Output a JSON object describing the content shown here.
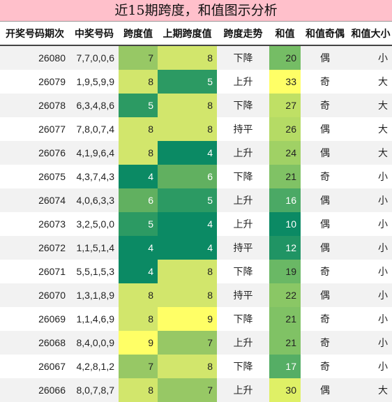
{
  "title": "近15期跨度，和值图示分析",
  "headers": {
    "period": "开奖号码期次",
    "numbers": "中奖号码",
    "span": "跨度值",
    "prev_span": "上期跨度值",
    "trend": "跨度走势",
    "sum": "和值",
    "parity": "和值奇偶",
    "size": "和值大小"
  },
  "colors": {
    "title_bg": "#ffc0cb",
    "span_4": "#0b8a64",
    "span_5": "#2c9a63",
    "span_6": "#61b060",
    "span_7": "#97c865",
    "span_8": "#d2e66c",
    "span_9": "#ffff66",
    "sum_scale_low": "#0b8a64",
    "sum_scale_high": "#ffff66"
  },
  "rows": [
    {
      "period": "26080",
      "numbers": "7,7,0,0,6",
      "span": "7",
      "prev_span": "8",
      "trend": "下降",
      "sum": "20",
      "parity": "偶",
      "size": "小"
    },
    {
      "period": "26079",
      "numbers": "1,9,5,9,9",
      "span": "8",
      "prev_span": "5",
      "trend": "上升",
      "sum": "33",
      "parity": "奇",
      "size": "大"
    },
    {
      "period": "26078",
      "numbers": "6,3,4,8,6",
      "span": "5",
      "prev_span": "8",
      "trend": "下降",
      "sum": "27",
      "parity": "奇",
      "size": "大"
    },
    {
      "period": "26077",
      "numbers": "7,8,0,7,4",
      "span": "8",
      "prev_span": "8",
      "trend": "持平",
      "sum": "26",
      "parity": "偶",
      "size": "大"
    },
    {
      "period": "26076",
      "numbers": "4,1,9,6,4",
      "span": "8",
      "prev_span": "4",
      "trend": "上升",
      "sum": "24",
      "parity": "偶",
      "size": "大"
    },
    {
      "period": "26075",
      "numbers": "4,3,7,4,3",
      "span": "4",
      "prev_span": "6",
      "trend": "下降",
      "sum": "21",
      "parity": "奇",
      "size": "小"
    },
    {
      "period": "26074",
      "numbers": "4,0,6,3,3",
      "span": "6",
      "prev_span": "5",
      "trend": "上升",
      "sum": "16",
      "parity": "偶",
      "size": "小"
    },
    {
      "period": "26073",
      "numbers": "3,2,5,0,0",
      "span": "5",
      "prev_span": "4",
      "trend": "上升",
      "sum": "10",
      "parity": "偶",
      "size": "小"
    },
    {
      "period": "26072",
      "numbers": "1,1,5,1,4",
      "span": "4",
      "prev_span": "4",
      "trend": "持平",
      "sum": "12",
      "parity": "偶",
      "size": "小"
    },
    {
      "period": "26071",
      "numbers": "5,5,1,5,3",
      "span": "4",
      "prev_span": "8",
      "trend": "下降",
      "sum": "19",
      "parity": "奇",
      "size": "小"
    },
    {
      "period": "26070",
      "numbers": "1,3,1,8,9",
      "span": "8",
      "prev_span": "8",
      "trend": "持平",
      "sum": "22",
      "parity": "偶",
      "size": "小"
    },
    {
      "period": "26069",
      "numbers": "1,1,4,6,9",
      "span": "8",
      "prev_span": "9",
      "trend": "下降",
      "sum": "21",
      "parity": "奇",
      "size": "小"
    },
    {
      "period": "26068",
      "numbers": "8,4,0,0,9",
      "span": "9",
      "prev_span": "7",
      "trend": "上升",
      "sum": "21",
      "parity": "奇",
      "size": "小"
    },
    {
      "period": "26067",
      "numbers": "4,2,8,1,2",
      "span": "7",
      "prev_span": "8",
      "trend": "下降",
      "sum": "17",
      "parity": "奇",
      "size": "小"
    },
    {
      "period": "26066",
      "numbers": "8,0,7,8,7",
      "span": "8",
      "prev_span": "7",
      "trend": "上升",
      "sum": "30",
      "parity": "偶",
      "size": "大"
    }
  ]
}
